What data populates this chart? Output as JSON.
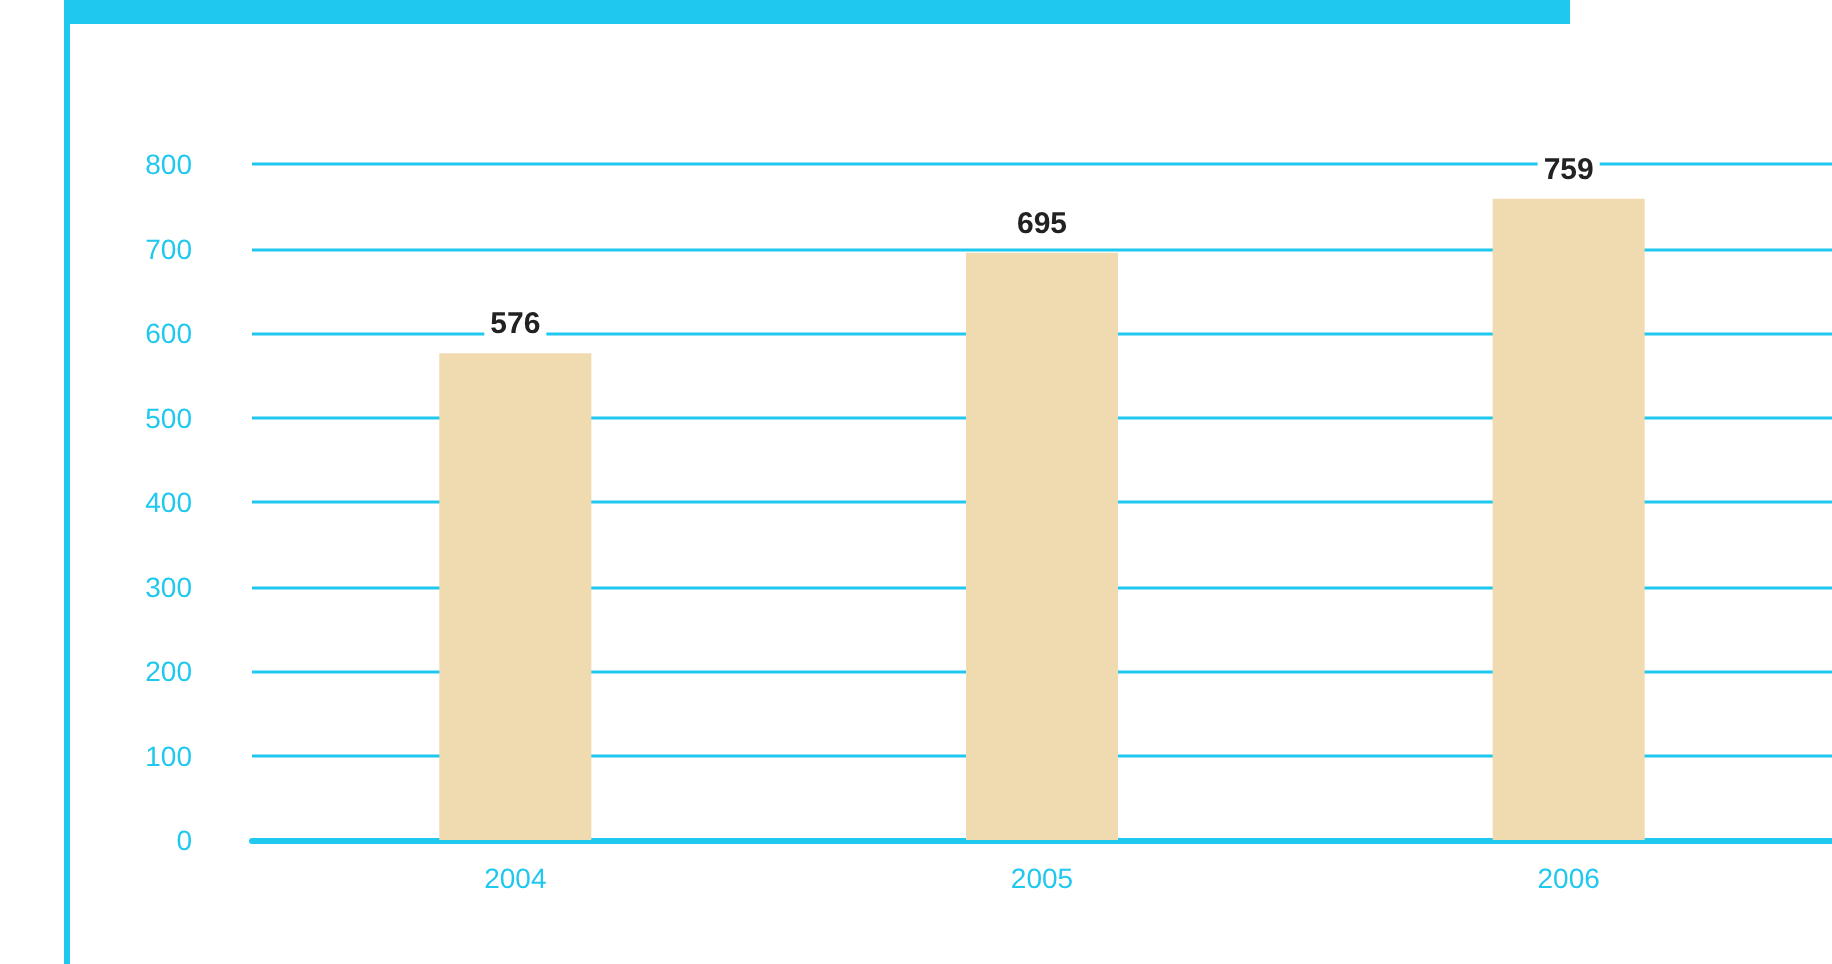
{
  "chart_data": {
    "type": "bar",
    "categories": [
      "2004",
      "2005",
      "2006"
    ],
    "values": [
      576,
      695,
      759
    ],
    "color": "#f0dab0",
    "ylim": [
      0,
      800
    ],
    "yticks": [
      0,
      100,
      200,
      300,
      400,
      500,
      600,
      700,
      800
    ],
    "grid": "y",
    "data_labels": true
  }
}
